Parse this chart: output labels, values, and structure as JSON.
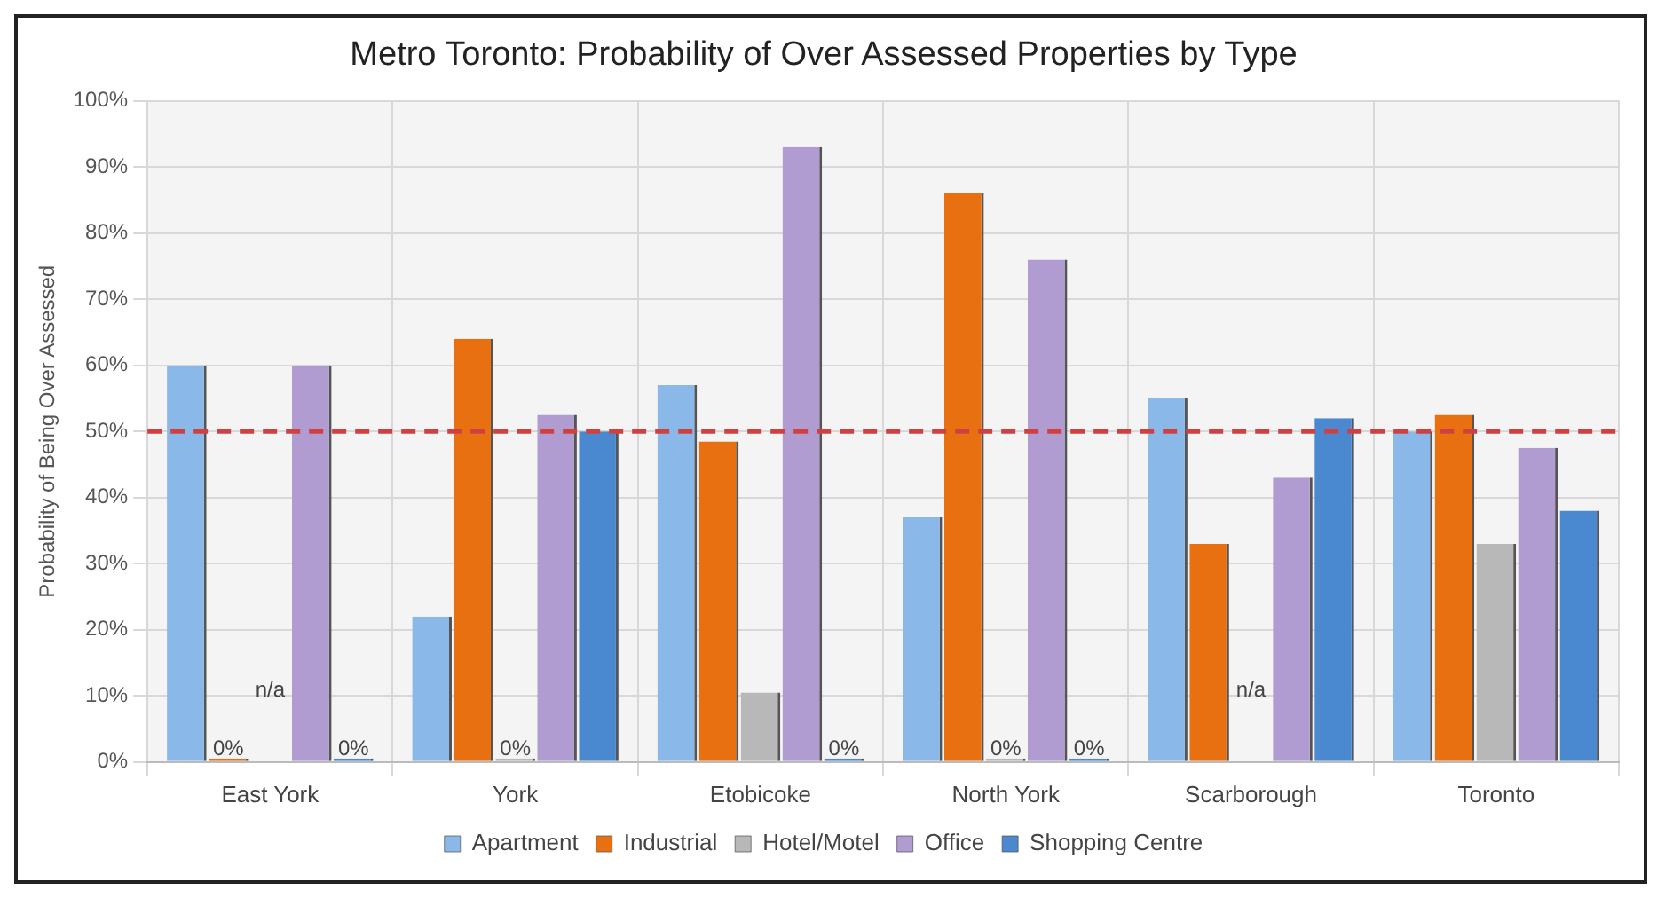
{
  "chart_data": {
    "type": "bar",
    "title": "Metro Toronto: Probability of Over Assessed Properties by Type",
    "ylabel": "Probability of Being Over Assessed",
    "categories": [
      "East York",
      "York",
      "Etobicoke",
      "North York",
      "Scarborough",
      "Toronto"
    ],
    "series": [
      {
        "name": "Apartment",
        "color": "#8ab8e8",
        "values": [
          60,
          22,
          57,
          37,
          55,
          50
        ]
      },
      {
        "name": "Industrial",
        "color": "#e87010",
        "values": [
          0,
          64,
          48.5,
          86,
          33,
          52.5
        ],
        "value_labels": [
          "0%",
          null,
          null,
          null,
          null,
          null
        ]
      },
      {
        "name": "Hotel/Motel",
        "color": "#b8b8b8",
        "values": [
          null,
          0,
          10.5,
          0,
          null,
          33
        ],
        "value_labels": [
          "n/a",
          "0%",
          null,
          "0%",
          "n/a",
          null
        ]
      },
      {
        "name": "Office",
        "color": "#b09cd0",
        "values": [
          60,
          52.5,
          93,
          76,
          43,
          47.5
        ]
      },
      {
        "name": "Shopping Centre",
        "color": "#4a88d0",
        "values": [
          0,
          50,
          0,
          0,
          52,
          38
        ],
        "value_labels": [
          "0%",
          null,
          "0%",
          "0%",
          null,
          null
        ]
      }
    ],
    "ylim": [
      0,
      100
    ],
    "yticks": [
      {
        "value": 0,
        "label": "0%"
      },
      {
        "value": 10,
        "label": "10%"
      },
      {
        "value": 20,
        "label": "20%"
      },
      {
        "value": 30,
        "label": "30%"
      },
      {
        "value": 40,
        "label": "40%"
      },
      {
        "value": 50,
        "label": "50%"
      },
      {
        "value": 60,
        "label": "60%"
      },
      {
        "value": 70,
        "label": "70%"
      },
      {
        "value": 80,
        "label": "80%"
      },
      {
        "value": 90,
        "label": "90%"
      },
      {
        "value": 100,
        "label": "100%"
      }
    ],
    "ref_lines": [
      {
        "axis": "y",
        "value": 50,
        "color": "#d04040",
        "line_style": "dashed"
      }
    ],
    "grid": true,
    "legend": "bottom"
  }
}
